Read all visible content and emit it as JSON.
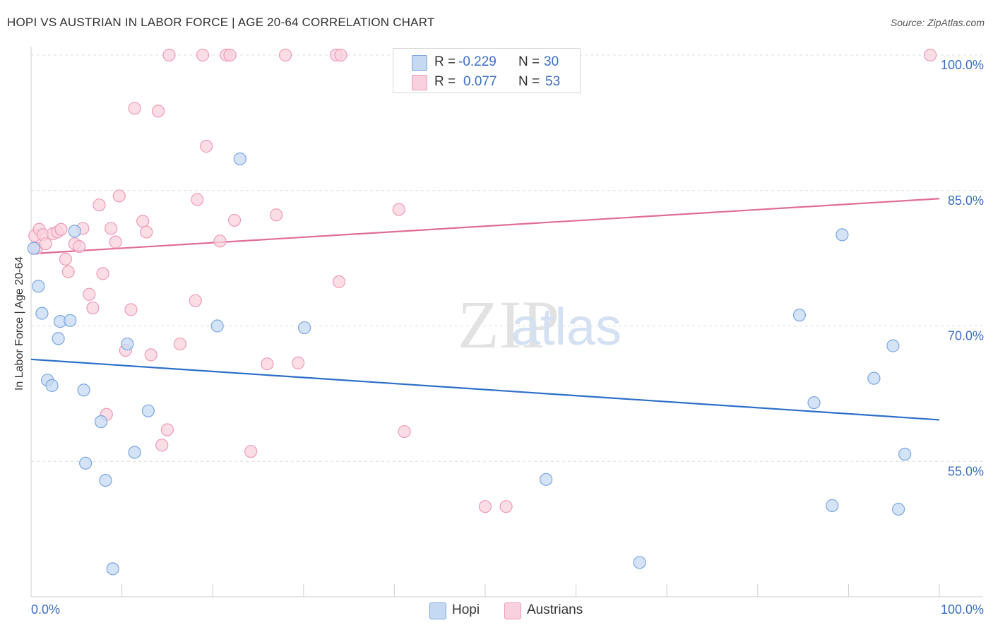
{
  "chart_data": {
    "type": "scatter",
    "title": "HOPI VS AUSTRIAN IN LABOR FORCE | AGE 20-64 CORRELATION CHART",
    "source": "Source: ZipAtlas.com",
    "xlabel": "",
    "ylabel": "In Labor Force | Age 20-64",
    "xlim": [
      0,
      100
    ],
    "ylim": [
      40,
      100
    ],
    "x_tick_labels": [
      "0.0%",
      "100.0%"
    ],
    "y_ticks": [
      55,
      70,
      85,
      100
    ],
    "y_tick_labels": [
      "55.0%",
      "70.0%",
      "85.0%",
      "100.0%"
    ],
    "grid": true,
    "legend_position": "bottom-center",
    "watermark": "ZIPatlas",
    "series": [
      {
        "name": "Hopi",
        "color": "#7aa6e0",
        "fill": "#c5d9f3",
        "line_color": "#2c6fc9",
        "R": "-0.229",
        "N": "30",
        "trend": {
          "x": [
            0,
            100
          ],
          "y": [
            66.3,
            59.6
          ]
        },
        "points": [
          [
            0.3,
            78.6
          ],
          [
            0.8,
            74.4
          ],
          [
            1.2,
            71.4
          ],
          [
            1.8,
            64.0
          ],
          [
            2.3,
            63.4
          ],
          [
            3.0,
            68.6
          ],
          [
            3.2,
            70.5
          ],
          [
            4.3,
            70.6
          ],
          [
            4.8,
            80.5
          ],
          [
            5.8,
            62.9
          ],
          [
            6.0,
            54.8
          ],
          [
            7.7,
            59.4
          ],
          [
            8.2,
            52.9
          ],
          [
            9.0,
            43.1
          ],
          [
            10.6,
            68.0
          ],
          [
            11.4,
            56.0
          ],
          [
            12.9,
            60.6
          ],
          [
            20.5,
            70.0
          ],
          [
            23.0,
            88.5
          ],
          [
            30.1,
            69.8
          ],
          [
            56.7,
            53.0
          ],
          [
            67.0,
            43.8
          ],
          [
            84.6,
            71.2
          ],
          [
            86.2,
            61.5
          ],
          [
            88.2,
            50.1
          ],
          [
            89.3,
            80.1
          ],
          [
            92.8,
            64.2
          ],
          [
            94.9,
            67.8
          ],
          [
            95.5,
            49.7
          ],
          [
            96.2,
            55.8
          ]
        ]
      },
      {
        "name": "Austrians",
        "color": "#ee9bb6",
        "fill": "#f9d1de",
        "line_color": "#e06d95",
        "R": "0.077",
        "N": "53",
        "trend": {
          "x": [
            0,
            100
          ],
          "y": [
            78.0,
            84.1
          ]
        },
        "points": [
          [
            0.4,
            80.0
          ],
          [
            0.6,
            78.6
          ],
          [
            0.9,
            80.7
          ],
          [
            1.3,
            80.1
          ],
          [
            1.6,
            79.1
          ],
          [
            2.4,
            80.2
          ],
          [
            2.9,
            80.4
          ],
          [
            3.3,
            80.7
          ],
          [
            3.8,
            77.4
          ],
          [
            4.1,
            76.0
          ],
          [
            4.8,
            79.1
          ],
          [
            5.3,
            78.8
          ],
          [
            5.7,
            80.8
          ],
          [
            6.4,
            73.5
          ],
          [
            6.8,
            72.0
          ],
          [
            7.5,
            83.4
          ],
          [
            7.9,
            75.8
          ],
          [
            8.3,
            60.2
          ],
          [
            8.8,
            80.8
          ],
          [
            9.3,
            79.3
          ],
          [
            9.7,
            84.4
          ],
          [
            10.4,
            67.3
          ],
          [
            11.0,
            71.8
          ],
          [
            11.4,
            94.1
          ],
          [
            12.3,
            81.6
          ],
          [
            12.7,
            80.4
          ],
          [
            13.2,
            66.8
          ],
          [
            14.0,
            93.8
          ],
          [
            14.4,
            56.8
          ],
          [
            15.0,
            58.5
          ],
          [
            15.2,
            100
          ],
          [
            16.4,
            68.0
          ],
          [
            18.1,
            72.8
          ],
          [
            18.3,
            84.0
          ],
          [
            18.9,
            100
          ],
          [
            19.3,
            89.9
          ],
          [
            20.8,
            79.4
          ],
          [
            21.5,
            100
          ],
          [
            21.9,
            100
          ],
          [
            22.4,
            81.7
          ],
          [
            24.2,
            56.1
          ],
          [
            26.0,
            65.8
          ],
          [
            27.0,
            82.3
          ],
          [
            28.0,
            100
          ],
          [
            29.4,
            65.9
          ],
          [
            33.6,
            100
          ],
          [
            34.1,
            100
          ],
          [
            33.9,
            74.9
          ],
          [
            40.5,
            82.9
          ],
          [
            41.1,
            58.3
          ],
          [
            50.0,
            50.0
          ],
          [
            52.3,
            50.0
          ],
          [
            99.0,
            100
          ]
        ]
      }
    ]
  }
}
